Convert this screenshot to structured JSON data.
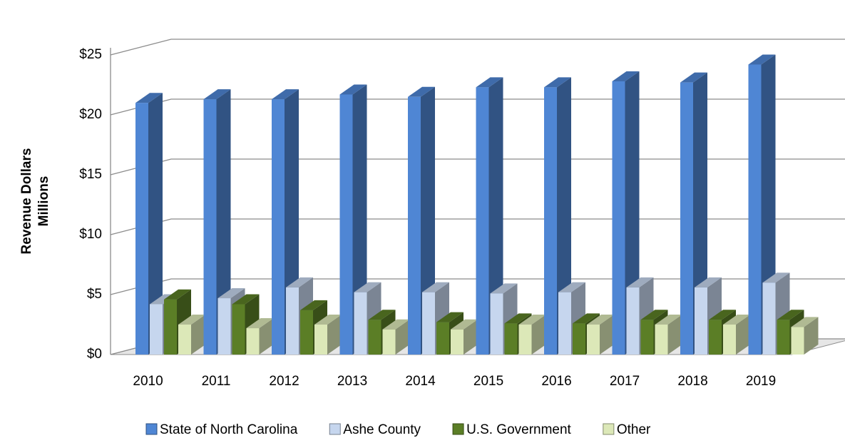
{
  "chart_data": {
    "type": "bar3d",
    "ylabel": [
      "Revenue Dollars",
      "Millions"
    ],
    "categories": [
      "2010",
      "2011",
      "2012",
      "2013",
      "2014",
      "2015",
      "2016",
      "2017",
      "2018",
      "2019"
    ],
    "series": [
      {
        "name": "State of North Carolina",
        "color": "#4f86d4",
        "values": [
          21.0,
          21.3,
          21.3,
          21.7,
          21.5,
          22.3,
          22.3,
          22.8,
          22.7,
          24.2
        ]
      },
      {
        "name": "Ashe County",
        "color": "#c6d6ee",
        "values": [
          4.2,
          4.7,
          5.6,
          5.2,
          5.2,
          5.1,
          5.2,
          5.6,
          5.6,
          6.0
        ]
      },
      {
        "name": "U.S. Government",
        "color": "#5b7e26",
        "values": [
          4.6,
          4.2,
          3.7,
          2.9,
          2.7,
          2.6,
          2.6,
          2.9,
          2.9,
          2.9
        ]
      },
      {
        "name": "Other",
        "color": "#dce8b8",
        "values": [
          2.5,
          2.2,
          2.5,
          2.1,
          2.1,
          2.5,
          2.5,
          2.5,
          2.5,
          2.3
        ]
      }
    ],
    "ylim": [
      0,
      25
    ],
    "yticks": [
      {
        "value": 0,
        "label": "$0"
      },
      {
        "value": 5,
        "label": "$5"
      },
      {
        "value": 10,
        "label": "$10"
      },
      {
        "value": 15,
        "label": "$15"
      },
      {
        "value": 20,
        "label": "$20"
      },
      {
        "value": 25,
        "label": "$25"
      }
    ],
    "grid": true
  }
}
